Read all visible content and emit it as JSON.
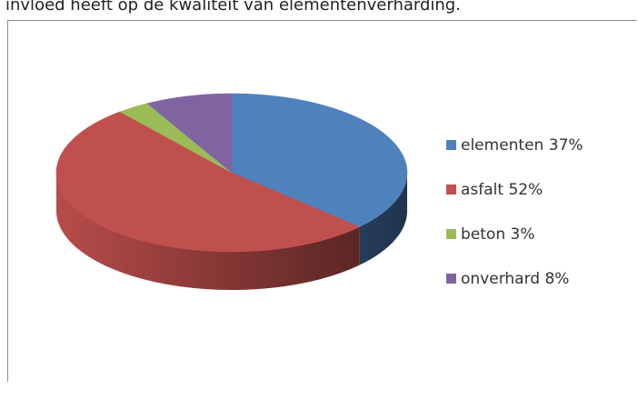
{
  "caption": "invloed heeft op de kwaliteit van elementenverharding.",
  "chart_data": {
    "type": "pie",
    "categories": [
      "elementen",
      "asfalt",
      "beton",
      "onverhard"
    ],
    "values": [
      37,
      52,
      3,
      8
    ],
    "value_labels": [
      "37%",
      "52%",
      "3%",
      "8%"
    ],
    "colors": [
      "#4f81bd",
      "#c0504d",
      "#9bbb59",
      "#8064a2"
    ],
    "legend": "right"
  }
}
